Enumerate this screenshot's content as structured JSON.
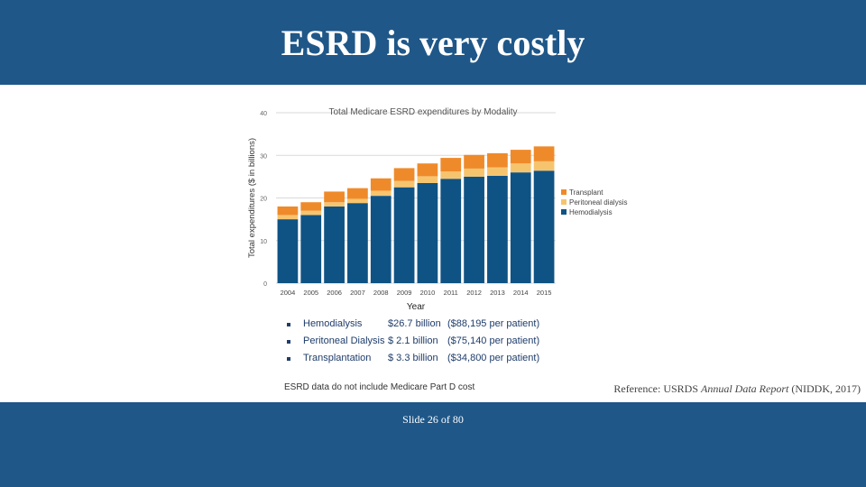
{
  "slide": {
    "title": "ESRD is very costly",
    "slide_number": "Slide 26 of 80",
    "reference_prefix": "Reference: USRDS ",
    "reference_italic": "Annual Data Report",
    "reference_suffix": " (NIDDK, 2017)"
  },
  "colors": {
    "band": "#1f5788",
    "hemodialysis": "#0f5384",
    "peritoneal": "#f7c46e",
    "transplant": "#ef8a2a"
  },
  "chart_data": {
    "type": "bar",
    "stacked": true,
    "title": "Total Medicare ESRD expenditures by Modality",
    "xlabel": "Year",
    "ylabel": "Total expenditures ($ in billions)",
    "ylim": [
      0,
      40
    ],
    "yticks": [
      "0",
      "10",
      "20",
      "30",
      "40"
    ],
    "grid": true,
    "legend_position": "right",
    "categories": [
      "2004",
      "2005",
      "2006",
      "2007",
      "2008",
      "2009",
      "2010",
      "2011",
      "2012",
      "2013",
      "2014",
      "2015"
    ],
    "series": [
      {
        "name": "Hemodialysis",
        "values": [
          15.0,
          16.0,
          18.0,
          18.8,
          20.5,
          22.5,
          23.5,
          24.5,
          25.0,
          25.2,
          26.0,
          26.4
        ]
      },
      {
        "name": "Peritoneal dialysis",
        "values": [
          1.0,
          1.0,
          1.0,
          1.0,
          1.2,
          1.5,
          1.6,
          1.7,
          1.9,
          2.0,
          2.1,
          2.2
        ]
      },
      {
        "name": "Transplant",
        "values": [
          2.0,
          2.0,
          2.5,
          2.5,
          2.9,
          3.0,
          3.0,
          3.2,
          3.2,
          3.3,
          3.2,
          3.5
        ]
      }
    ],
    "legend": [
      "Transplant",
      "Peritoneal dialysis",
      "Hemodialysis"
    ]
  },
  "summary": {
    "items": [
      {
        "label": "Hemodialysis",
        "amount": "$26.7 billion",
        "per_patient": "($88,195 per patient)"
      },
      {
        "label": "Peritoneal Dialysis",
        "amount": "$  2.1 billion",
        "per_patient": "($75,140 per patient)"
      },
      {
        "label": "Transplantation",
        "amount": "$  3.3 billion",
        "per_patient": "($34,800 per patient)"
      }
    ],
    "footnote": "ESRD data do not include Medicare Part D cost"
  }
}
